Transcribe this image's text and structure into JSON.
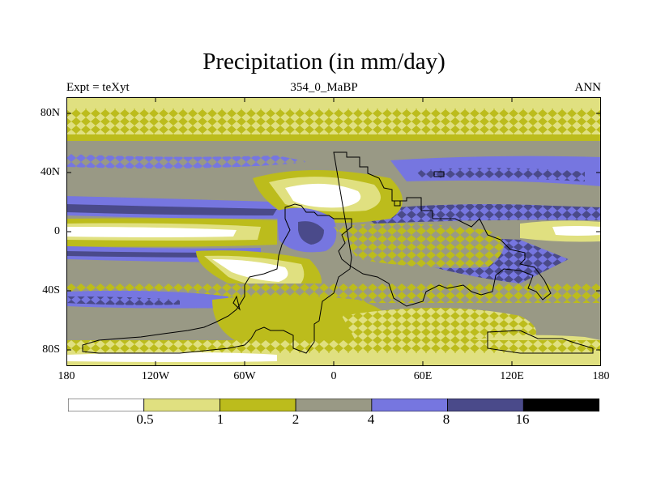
{
  "title": "Precipitation (in mm/day)",
  "subtitle_left": "Expt = teXyt",
  "subtitle_center": "354_0_MaBP",
  "subtitle_right": "ANN",
  "y_tick_labels": [
    "80N",
    "40N",
    "0",
    "40S",
    "80S"
  ],
  "x_tick_labels": [
    "180",
    "120W",
    "60W",
    "0",
    "60E",
    "120E",
    "180"
  ],
  "colorbar": {
    "labels": [
      "0.5",
      "1",
      "2",
      "4",
      "8",
      "16"
    ],
    "colors": [
      "#ffffff",
      "#e0e080",
      "#bcbc1c",
      "#999985",
      "#7676e0",
      "#4a4a8a",
      "#000000"
    ]
  },
  "colors": {
    "coastline": "#000000",
    "frame": "#000000"
  }
}
